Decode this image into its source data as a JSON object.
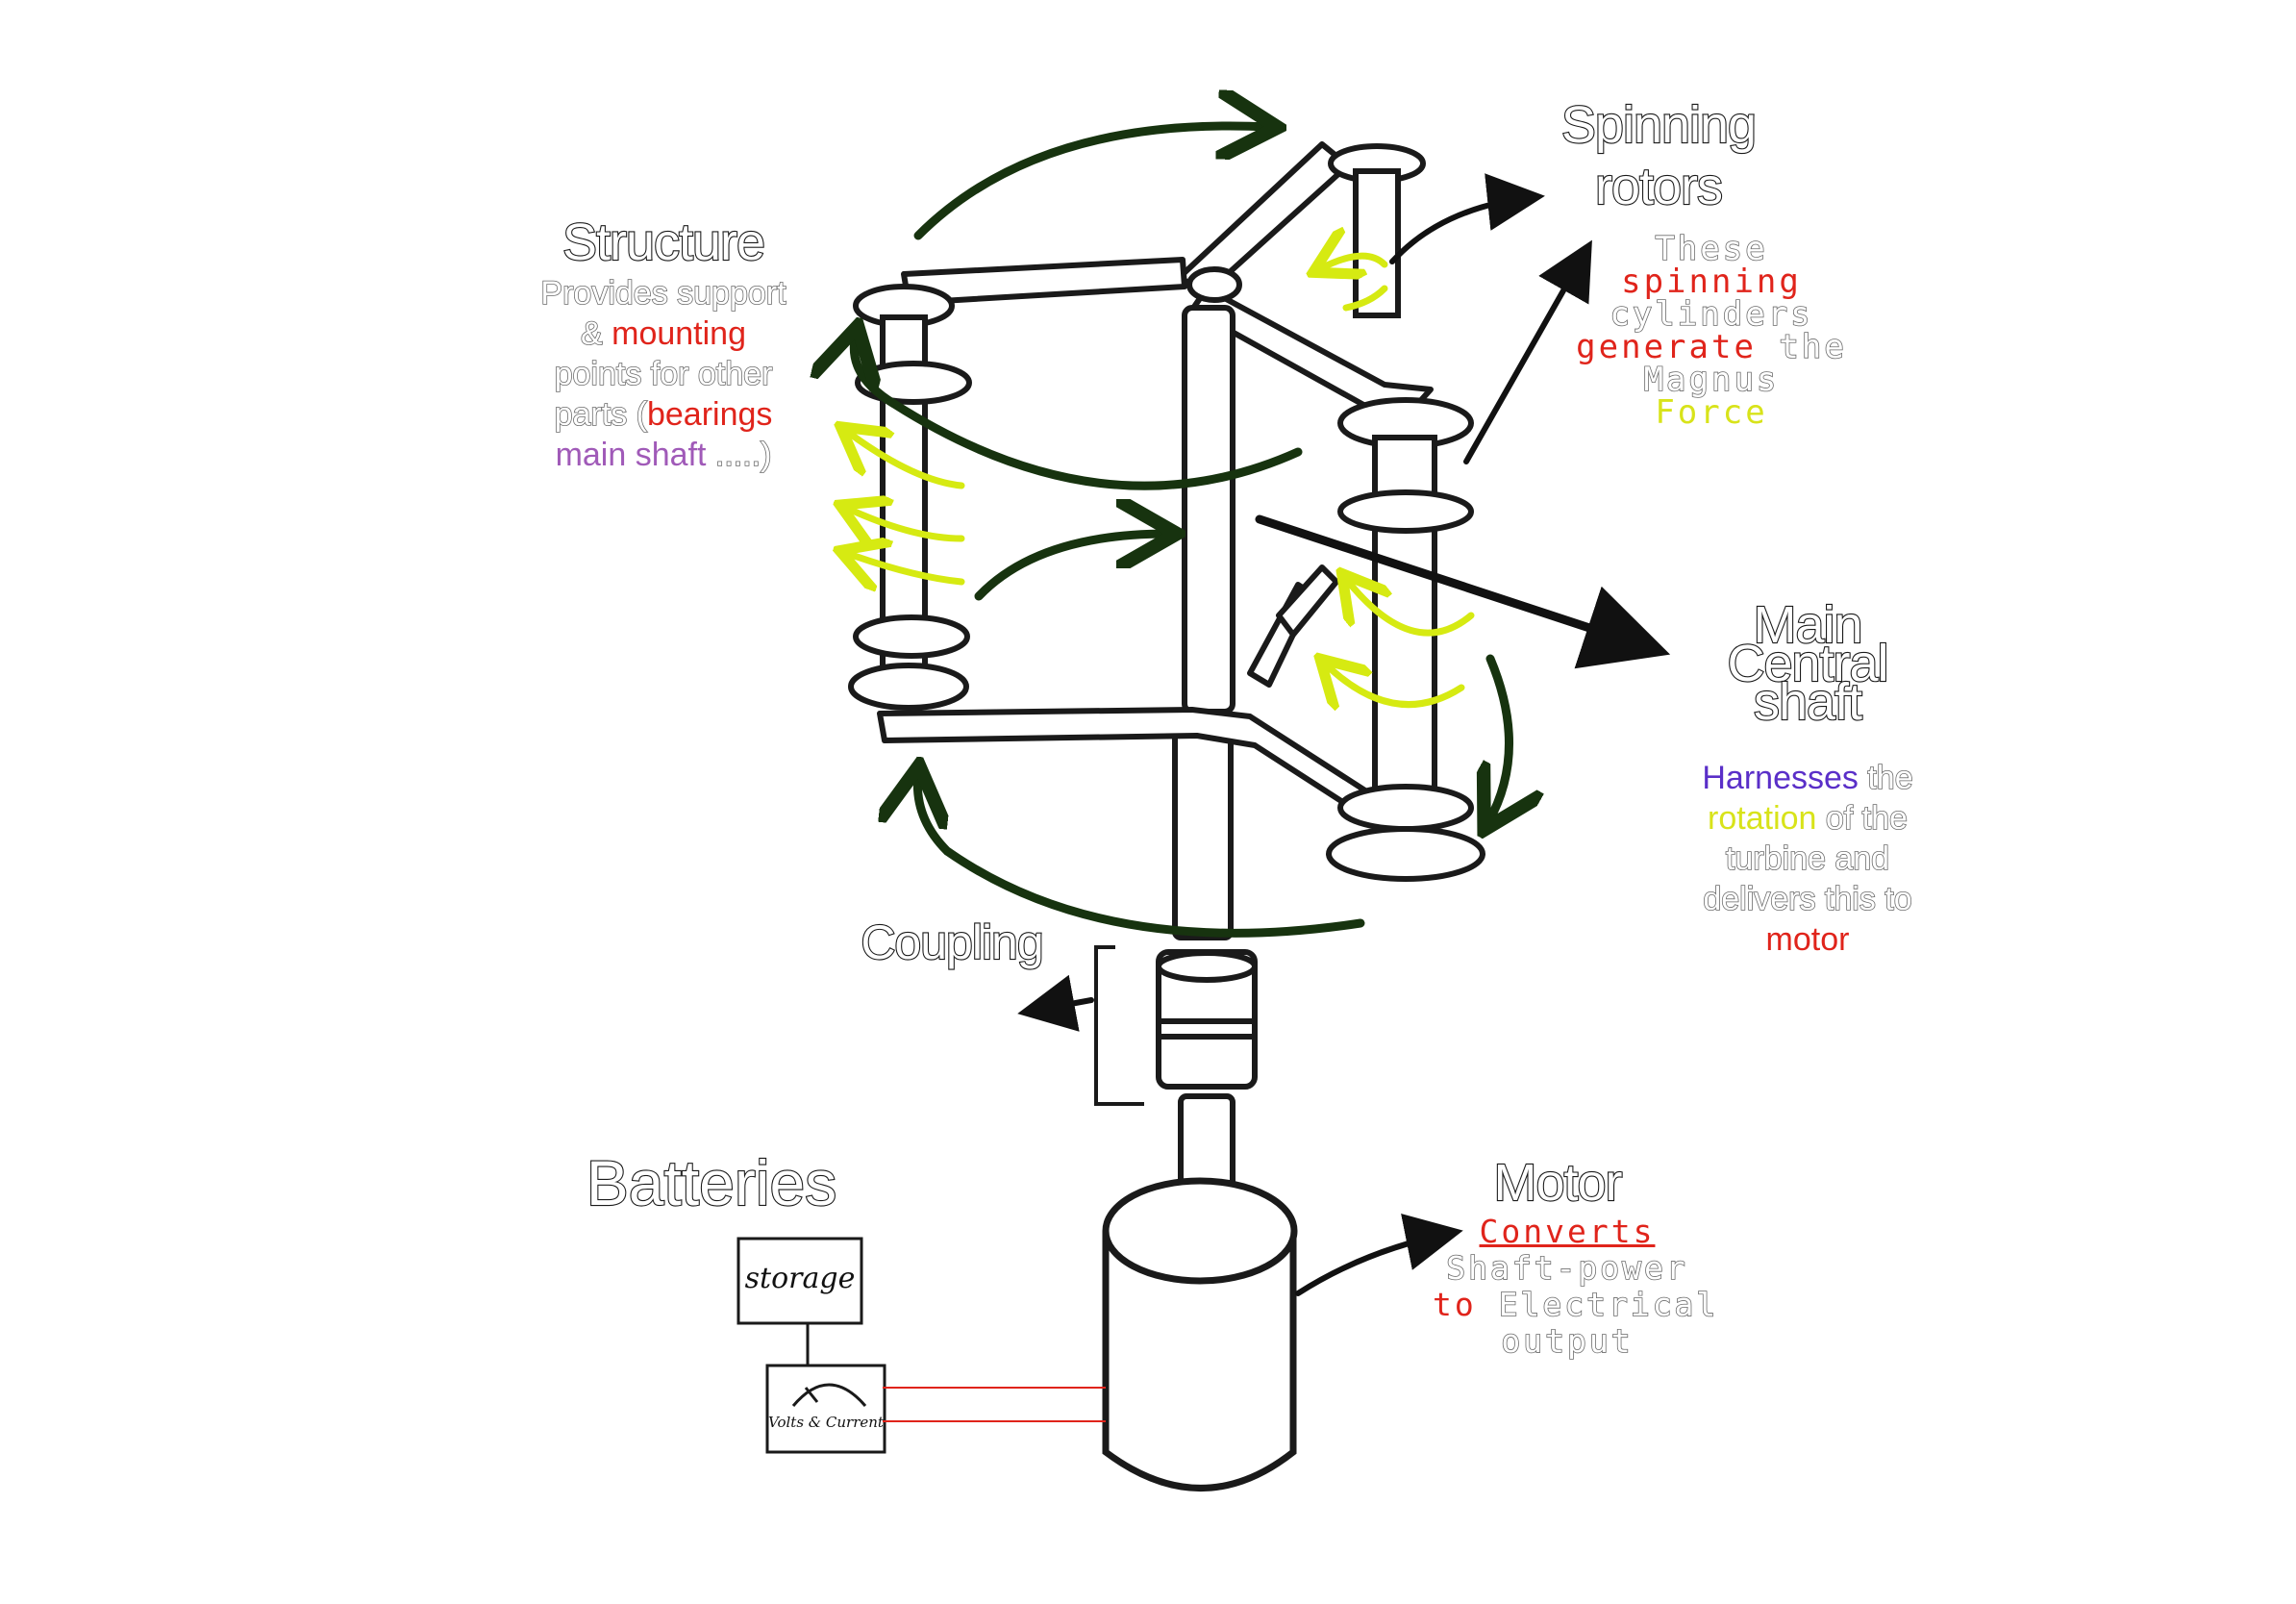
{
  "structure": {
    "title": "Structure",
    "line1": "Provides support",
    "line2_a": "& ",
    "line2_b": "mounting",
    "line3": "points for other",
    "line4_a": "parts (",
    "line4_b": "bearings",
    "line5_a": "main shaft",
    "line5_b": " .....)"
  },
  "spinning_rotors": {
    "title_line1": "Spinning",
    "title_line2": "rotors",
    "line1": "These",
    "line2": "spinning",
    "line3": "cylinders",
    "line4_a": "generate",
    "line4_b": " the",
    "line5": "Magnus",
    "line6": "Force"
  },
  "main_shaft": {
    "title_line1": "Main",
    "title_line2": "Central",
    "title_line3": "shaft",
    "line1_a": "Harnesses",
    "line1_b": " the",
    "line2_a": "rotation",
    "line2_b": " of the",
    "line3": "turbine and",
    "line4": "delivers this to",
    "line5": "motor"
  },
  "coupling": {
    "title": "Coupling"
  },
  "batteries": {
    "title": "Batteries",
    "storage_label": "storage",
    "meter_label": "Volts & Current"
  },
  "motor": {
    "title": "Motor",
    "line1": "Converts",
    "line2": "Shaft-power",
    "line3_a": "to",
    "line3_b": " Electrical",
    "line4": "output"
  },
  "colors": {
    "dark_green_arrow": "#17330f",
    "yellow_green_arrow": "#d6ea12",
    "red_accent": "#e0241b",
    "purple_accent": "#a05ab8",
    "violet_accent": "#5a2fc8",
    "ink": "#1a1a1a"
  },
  "icons": [
    "rotation-arrow-icon",
    "pointer-arrow-icon",
    "gauge-icon"
  ]
}
